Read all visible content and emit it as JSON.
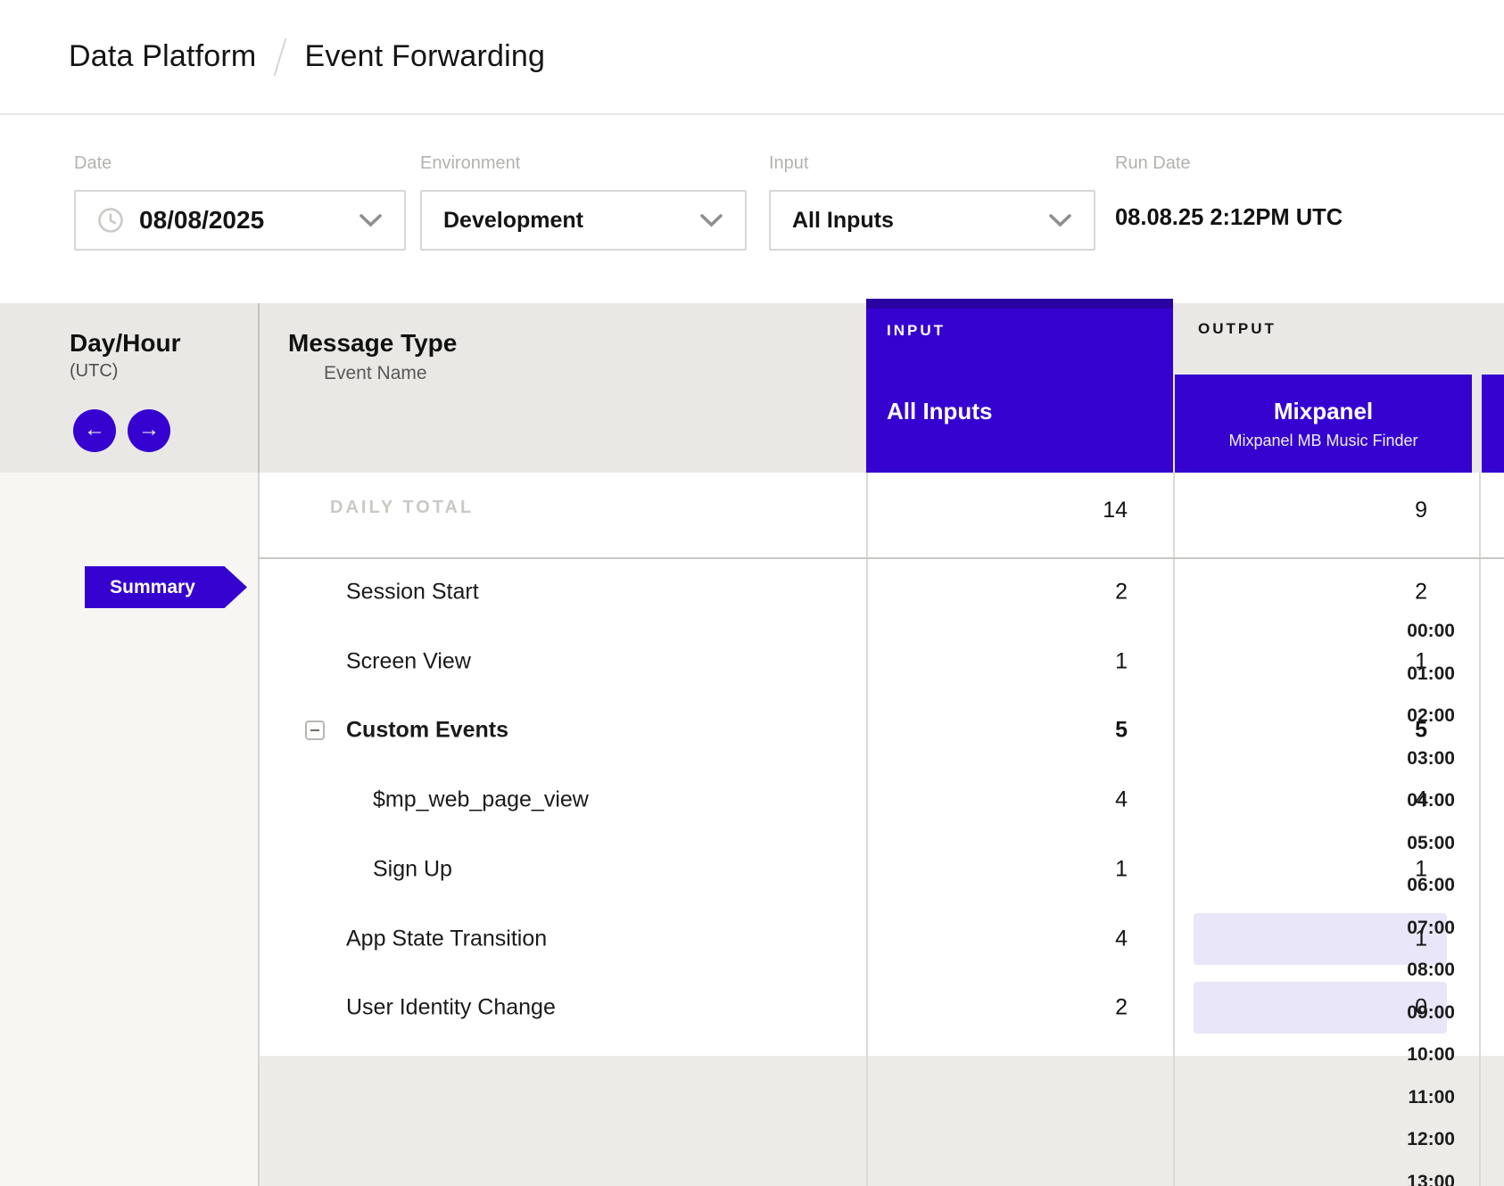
{
  "breadcrumb": {
    "section": "Data Platform",
    "page": "Event Forwarding"
  },
  "filters": {
    "date": {
      "label": "Date",
      "value": "08/08/2025"
    },
    "environment": {
      "label": "Environment",
      "value": "Development"
    },
    "input": {
      "label": "Input",
      "value": "All Inputs"
    },
    "run_date": {
      "label": "Run Date",
      "value": "08.08.25 2:12PM UTC"
    }
  },
  "grid": {
    "day_hour": {
      "title": "Day/Hour",
      "subtitle": "(UTC)"
    },
    "message_type": {
      "title": "Message Type",
      "subtitle": "Event Name"
    },
    "input_group": {
      "label": "INPUT",
      "column_title": "All Inputs"
    },
    "output_group": {
      "label": "OUTPUT",
      "column_title": "Mixpanel",
      "column_subtitle": "Mixpanel MB Music Finder"
    },
    "daily_total": {
      "label": "DAILY TOTAL",
      "input": "14",
      "output": "9"
    },
    "rows": [
      {
        "name": "Session Start",
        "input": "2",
        "output": "2",
        "bold": false,
        "indent": 0,
        "icon": null,
        "output_highlight": false
      },
      {
        "name": "Screen View",
        "input": "1",
        "output": "1",
        "bold": false,
        "indent": 0,
        "icon": null,
        "output_highlight": false
      },
      {
        "name": "Custom Events",
        "input": "5",
        "output": "5",
        "bold": true,
        "indent": 0,
        "icon": "minus",
        "output_highlight": false
      },
      {
        "name": "$mp_web_page_view",
        "input": "4",
        "output": "4",
        "bold": false,
        "indent": 1,
        "icon": null,
        "output_highlight": false
      },
      {
        "name": "Sign Up",
        "input": "1",
        "output": "1",
        "bold": false,
        "indent": 1,
        "icon": null,
        "output_highlight": false
      },
      {
        "name": "App State Transition",
        "input": "4",
        "output": "1",
        "bold": false,
        "indent": 0,
        "icon": null,
        "output_highlight": true
      },
      {
        "name": "User Identity Change",
        "input": "2",
        "output": "0",
        "bold": false,
        "indent": 0,
        "icon": null,
        "output_highlight": true
      }
    ],
    "summary_label": "Summary",
    "hours": [
      "00:00",
      "01:00",
      "02:00",
      "03:00",
      "04:00",
      "05:00",
      "06:00",
      "07:00",
      "08:00",
      "09:00",
      "10:00",
      "11:00",
      "12:00",
      "13:00"
    ]
  },
  "colors": {
    "accent_purple": "#3502d0",
    "accent_purple_dark": "#2b02a2",
    "highlight_lavender": "#e8e6f8",
    "header_band_gray": "#e9e8e5",
    "panel_offwhite": "#f7f6f3",
    "bottom_gray": "#ecebe8"
  }
}
